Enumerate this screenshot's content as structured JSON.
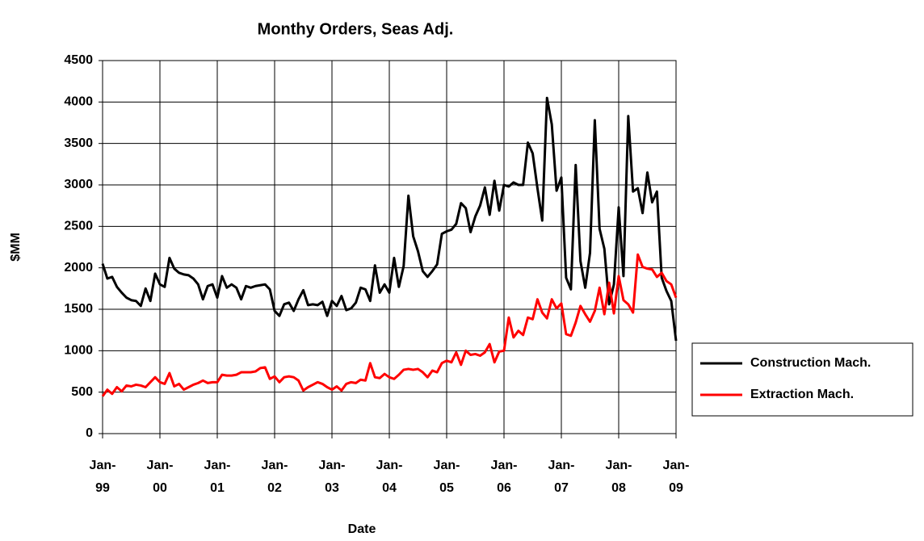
{
  "chart_data": {
    "type": "line",
    "title": "Monthy Orders, Seas Adj.",
    "xlabel": "Date",
    "ylabel": "$MM",
    "categories": [
      "Jan-99",
      null,
      null,
      null,
      null,
      null,
      null,
      null,
      null,
      null,
      null,
      null,
      "Jan-00",
      null,
      null,
      null,
      null,
      null,
      null,
      null,
      null,
      null,
      null,
      null,
      "Jan-01",
      null,
      null,
      null,
      null,
      null,
      null,
      null,
      null,
      null,
      null,
      null,
      "Jan-02",
      null,
      null,
      null,
      null,
      null,
      null,
      null,
      null,
      null,
      null,
      null,
      "Jan-03",
      null,
      null,
      null,
      null,
      null,
      null,
      null,
      null,
      null,
      null,
      null,
      "Jan-04",
      null,
      null,
      null,
      null,
      null,
      null,
      null,
      null,
      null,
      null,
      null,
      "Jan-05",
      null,
      null,
      null,
      null,
      null,
      null,
      null,
      null,
      null,
      null,
      null,
      "Jan-06",
      null,
      null,
      null,
      null,
      null,
      null,
      null,
      null,
      null,
      null,
      null,
      "Jan-07",
      null,
      null,
      null,
      null,
      null,
      null,
      null,
      null,
      null,
      null,
      null,
      "Jan-08",
      null,
      null,
      null,
      null,
      null,
      null,
      null,
      null,
      null,
      null,
      null,
      "Jan-09"
    ],
    "series": [
      {
        "name": "Construction Mach.",
        "color": "#000000",
        "values": [
          2050,
          1870,
          1890,
          1770,
          1700,
          1640,
          1610,
          1600,
          1540,
          1750,
          1600,
          1930,
          1800,
          1770,
          2120,
          1990,
          1940,
          1920,
          1910,
          1870,
          1800,
          1620,
          1780,
          1800,
          1640,
          1900,
          1760,
          1800,
          1760,
          1620,
          1780,
          1760,
          1780,
          1790,
          1800,
          1740,
          1480,
          1420,
          1560,
          1580,
          1480,
          1620,
          1730,
          1550,
          1560,
          1550,
          1590,
          1420,
          1600,
          1540,
          1660,
          1490,
          1510,
          1580,
          1760,
          1740,
          1600,
          2030,
          1700,
          1800,
          1700,
          2120,
          1770,
          2020,
          2870,
          2380,
          2200,
          1960,
          1890,
          1960,
          2040,
          2410,
          2440,
          2460,
          2530,
          2780,
          2720,
          2430,
          2620,
          2750,
          2970,
          2640,
          3050,
          2690,
          3000,
          2980,
          3030,
          3000,
          3000,
          3510,
          3380,
          2960,
          2570,
          4050,
          3730,
          2930,
          3090,
          1880,
          1740,
          3240,
          2080,
          1760,
          2180,
          3780,
          2470,
          2230,
          1560,
          1800,
          2730,
          1900,
          3830,
          2920,
          2960,
          2660,
          3150,
          2790,
          2920,
          1880,
          1720,
          1600,
          1120
        ]
      },
      {
        "name": "Extraction Mach.",
        "color": "#ff0000",
        "values": [
          450,
          530,
          480,
          560,
          510,
          580,
          570,
          590,
          580,
          560,
          620,
          680,
          620,
          600,
          730,
          570,
          600,
          530,
          560,
          590,
          610,
          640,
          610,
          620,
          620,
          710,
          700,
          700,
          710,
          740,
          740,
          740,
          750,
          790,
          800,
          660,
          690,
          620,
          680,
          690,
          680,
          640,
          520,
          560,
          590,
          620,
          600,
          560,
          530,
          570,
          520,
          600,
          620,
          610,
          650,
          640,
          850,
          680,
          670,
          720,
          680,
          660,
          710,
          770,
          780,
          770,
          780,
          740,
          680,
          760,
          740,
          850,
          880,
          860,
          980,
          830,
          1000,
          950,
          960,
          940,
          980,
          1080,
          860,
          990,
          1000,
          1400,
          1160,
          1240,
          1190,
          1400,
          1380,
          1620,
          1460,
          1390,
          1620,
          1510,
          1570,
          1200,
          1180,
          1340,
          1540,
          1440,
          1350,
          1480,
          1760,
          1440,
          1820,
          1450,
          1900,
          1610,
          1560,
          1460,
          2160,
          2010,
          1990,
          1980,
          1890,
          1940,
          1840,
          1800,
          1640
        ]
      }
    ],
    "ylim": [
      0,
      4500
    ],
    "yticks": [
      0,
      500,
      1000,
      1500,
      2000,
      2500,
      3000,
      3500,
      4000,
      4500
    ],
    "grid": true,
    "legend": "right"
  }
}
